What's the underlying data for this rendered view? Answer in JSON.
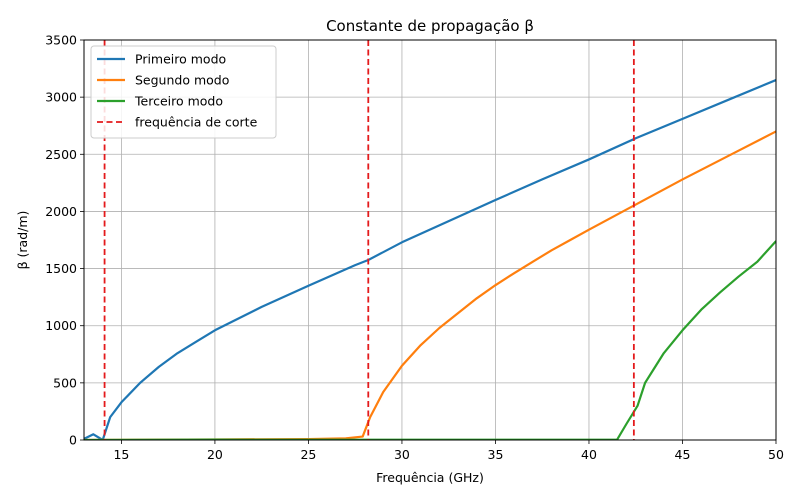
{
  "chart_data": {
    "type": "line",
    "title": "Constante de propagação β",
    "xlabel": "Frequência (GHz)",
    "ylabel": "β (rad/m)",
    "xlim": [
      13,
      50
    ],
    "ylim": [
      0,
      3500
    ],
    "xticks": [
      15,
      20,
      25,
      30,
      35,
      40,
      45,
      50
    ],
    "yticks": [
      0,
      500,
      1000,
      1500,
      2000,
      2500,
      3000,
      3500
    ],
    "grid": true,
    "legend_position": "top-left",
    "series": [
      {
        "name": "Primeiro modo",
        "color": "#1f77b4",
        "points": [
          [
            13,
            10
          ],
          [
            13.5,
            50
          ],
          [
            14,
            0
          ],
          [
            14.4,
            200
          ],
          [
            15,
            330
          ],
          [
            16,
            500
          ],
          [
            17,
            640
          ],
          [
            18,
            760
          ],
          [
            19,
            860
          ],
          [
            20,
            960
          ],
          [
            22.5,
            1165
          ],
          [
            25,
            1350
          ],
          [
            27.5,
            1530
          ],
          [
            28.2,
            1575
          ],
          [
            30,
            1730
          ],
          [
            32.5,
            1915
          ],
          [
            35,
            2100
          ],
          [
            37.5,
            2280
          ],
          [
            40,
            2455
          ],
          [
            42.5,
            2640
          ],
          [
            45,
            2810
          ],
          [
            47.5,
            2980
          ],
          [
            50,
            3150
          ]
        ]
      },
      {
        "name": "Segundo modo",
        "color": "#ff7f0e",
        "points": [
          [
            13,
            0
          ],
          [
            20,
            5
          ],
          [
            25,
            8
          ],
          [
            27,
            15
          ],
          [
            27.9,
            30
          ],
          [
            28.3,
            200
          ],
          [
            29,
            420
          ],
          [
            30,
            650
          ],
          [
            31,
            830
          ],
          [
            32,
            980
          ],
          [
            33,
            1110
          ],
          [
            34,
            1240
          ],
          [
            35,
            1355
          ],
          [
            36,
            1460
          ],
          [
            37,
            1560
          ],
          [
            38,
            1660
          ],
          [
            39,
            1750
          ],
          [
            40,
            1840
          ],
          [
            42.5,
            2060
          ],
          [
            45,
            2280
          ],
          [
            47.5,
            2490
          ],
          [
            50,
            2700
          ]
        ]
      },
      {
        "name": "Terceiro modo",
        "color": "#2ca02c",
        "points": [
          [
            13,
            0
          ],
          [
            20,
            3
          ],
          [
            30,
            2
          ],
          [
            35,
            2
          ],
          [
            40,
            2
          ],
          [
            41.5,
            2
          ],
          [
            42,
            140
          ],
          [
            42.6,
            300
          ],
          [
            43,
            500
          ],
          [
            43.5,
            630
          ],
          [
            44,
            760
          ],
          [
            45,
            960
          ],
          [
            46,
            1140
          ],
          [
            47,
            1290
          ],
          [
            48,
            1430
          ],
          [
            49,
            1560
          ],
          [
            50,
            1740
          ]
        ]
      }
    ],
    "cutoff": {
      "name": "frequência de corte",
      "color": "#e41a1c",
      "x": [
        14.1,
        28.2,
        42.4
      ]
    }
  }
}
